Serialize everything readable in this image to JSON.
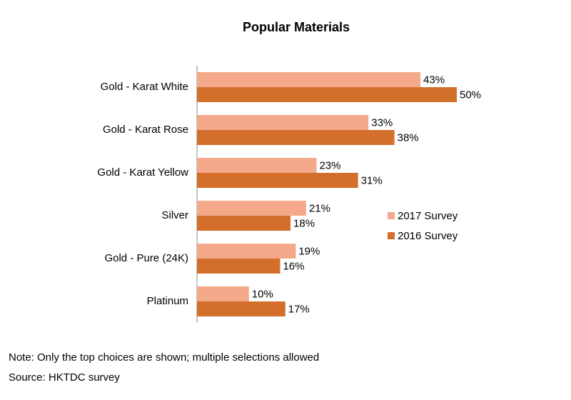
{
  "chart_data": {
    "type": "bar",
    "orientation": "horizontal",
    "title": "Popular Materials",
    "xlabel": "",
    "ylabel": "",
    "xlim": [
      0,
      50
    ],
    "grid": false,
    "legend_position": "right",
    "value_suffix": "%",
    "categories": [
      "Gold - Karat White",
      "Gold - Karat Rose",
      "Gold - Karat Yellow",
      "Silver",
      "Gold - Pure (24K)",
      "Platinum"
    ],
    "series": [
      {
        "name": "2017 Survey",
        "color": "#f3a98a",
        "values": [
          43,
          33,
          23,
          21,
          19,
          10
        ]
      },
      {
        "name": "2016 Survey",
        "color": "#d46f2b",
        "values": [
          50,
          38,
          31,
          18,
          16,
          17
        ]
      }
    ]
  },
  "footer": {
    "note": "Note: Only the top choices are shown; multiple selections allowed",
    "source": "Source: HKTDC survey"
  }
}
